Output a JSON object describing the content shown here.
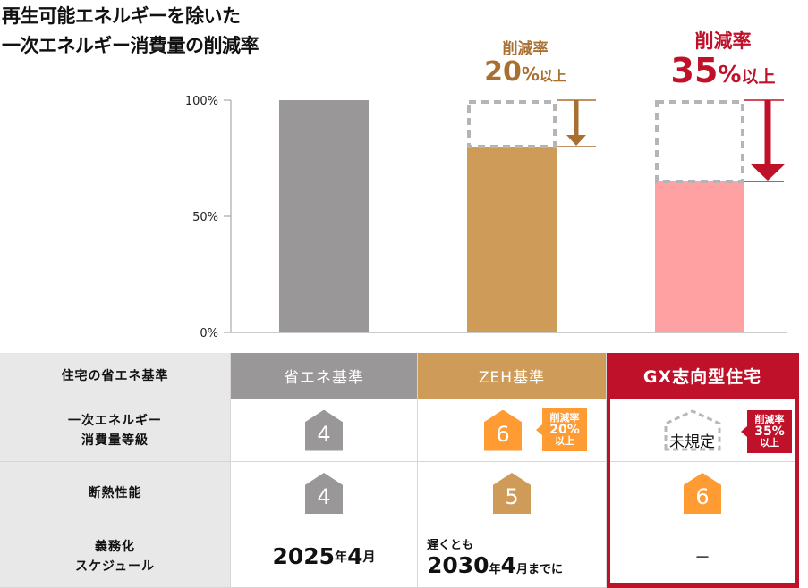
{
  "title_lines": [
    "再生可能エネルギーを除いた",
    "一次エネルギー消費量の削減率"
  ],
  "colors": {
    "gray": "#999797",
    "tan": "#cf9b59",
    "pink": "#ffa0a2",
    "brown": "#a86f31",
    "red": "#c0112a",
    "orange": "#ff9b33"
  },
  "chart_data": {
    "type": "bar",
    "categories": [
      "省エネ基準",
      "ZEH基準",
      "GX志向型住宅"
    ],
    "values": [
      100,
      80,
      65
    ],
    "ylim": [
      0,
      100
    ],
    "yticks": [
      "0%",
      "50%",
      "100%"
    ],
    "ytick_values": [
      0,
      50,
      100
    ],
    "annotations": [
      {
        "category": "ZEH基準",
        "label": "削減率",
        "value": "20",
        "unit": "%",
        "suffix": "以上"
      },
      {
        "category": "GX志向型住宅",
        "label": "削減率",
        "value": "35",
        "unit": "%",
        "suffix": "以上"
      }
    ]
  },
  "table": {
    "row_labels": [
      "住宅の省エネ基準",
      "一次エネルギー\n消費量等級",
      "断熱性能",
      "義務化\nスケジュール"
    ],
    "headers": [
      "省エネ基準",
      "ZEH基準",
      "GX志向型住宅"
    ],
    "energy_grade": [
      "4",
      "6",
      "未規定"
    ],
    "insulation": [
      "4",
      "5",
      "6"
    ],
    "zeh_badge": {
      "l1": "削減率",
      "l2": "20%",
      "l3": "以上"
    },
    "gx_badge": {
      "l1": "削減率",
      "l2": "35%",
      "l3": "以上"
    },
    "schedule": {
      "std_year": "2025",
      "std_nen": "年",
      "std_month": "4",
      "std_tsuki": "月",
      "zeh_pre": "遅くとも",
      "zeh_year": "2030",
      "zeh_nen": "年",
      "zeh_month": "4",
      "zeh_post": "月までに",
      "gx": "－"
    }
  }
}
